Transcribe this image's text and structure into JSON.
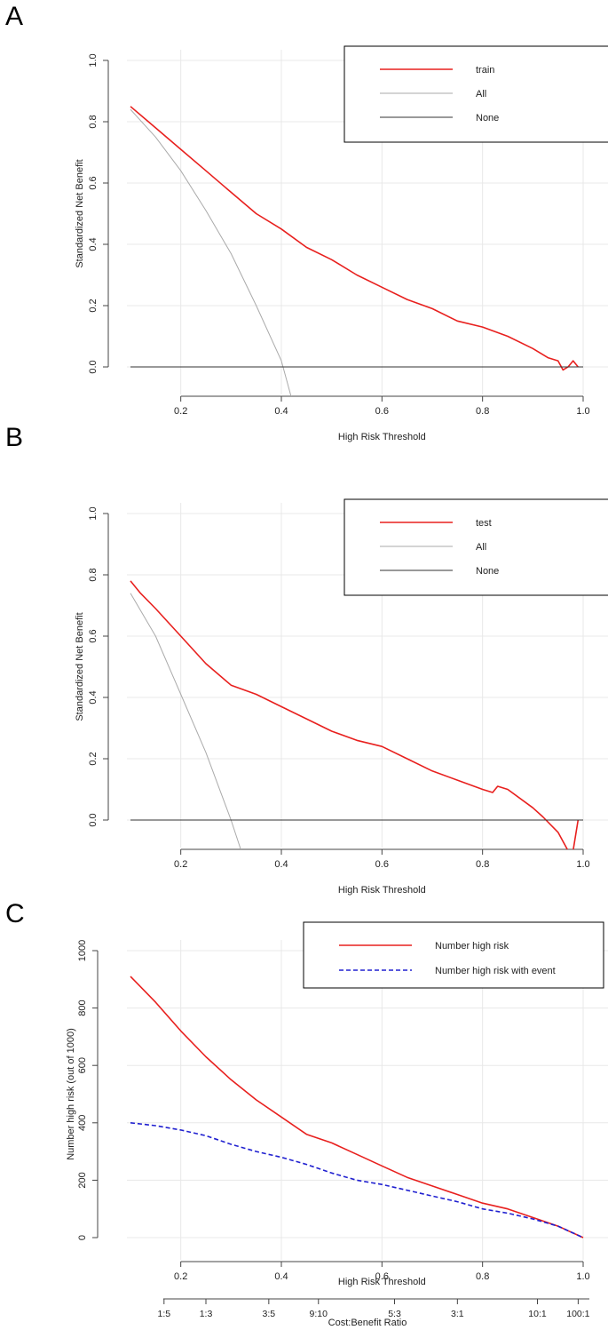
{
  "panels": [
    {
      "letter": "A"
    },
    {
      "letter": "B"
    },
    {
      "letter": "C"
    }
  ],
  "chart_data": [
    {
      "type": "line",
      "title": "",
      "xlabel": "High Risk Threshold",
      "ylabel": "Standardized Net Benefit",
      "xlim": [
        0.1,
        1.0
      ],
      "ylim": [
        -0.1,
        1.0
      ],
      "xticks": [
        "0.2",
        "0.4",
        "0.6",
        "0.8",
        "1.0"
      ],
      "yticks": [
        "0.0",
        "0.2",
        "0.4",
        "0.6",
        "0.8",
        "1.0"
      ],
      "grid": true,
      "legend_position": "top-right",
      "series": [
        {
          "name": "train",
          "color": "#e8201e",
          "x": [
            0.1,
            0.15,
            0.2,
            0.25,
            0.3,
            0.35,
            0.4,
            0.45,
            0.5,
            0.55,
            0.6,
            0.65,
            0.7,
            0.75,
            0.8,
            0.85,
            0.9,
            0.93,
            0.95,
            0.96,
            0.97,
            0.98,
            0.99
          ],
          "y": [
            0.85,
            0.78,
            0.71,
            0.64,
            0.57,
            0.5,
            0.45,
            0.39,
            0.35,
            0.3,
            0.26,
            0.22,
            0.19,
            0.15,
            0.13,
            0.1,
            0.06,
            0.03,
            0.02,
            -0.01,
            0.0,
            0.02,
            0.0
          ]
        },
        {
          "name": "All",
          "color": "#aaaaaa",
          "x": [
            0.1,
            0.15,
            0.2,
            0.25,
            0.3,
            0.35,
            0.4,
            0.42
          ],
          "y": [
            0.84,
            0.75,
            0.64,
            0.51,
            0.37,
            0.2,
            0.02,
            -0.1
          ]
        },
        {
          "name": "None",
          "color": "#333333",
          "x": [
            0.1,
            1.0
          ],
          "y": [
            0.0,
            0.0
          ]
        }
      ]
    },
    {
      "type": "line",
      "title": "",
      "xlabel": "High Risk Threshold",
      "ylabel": "Standardized Net Benefit",
      "xlim": [
        0.1,
        1.0
      ],
      "ylim": [
        -0.1,
        1.0
      ],
      "xticks": [
        "0.2",
        "0.4",
        "0.6",
        "0.8",
        "1.0"
      ],
      "yticks": [
        "0.0",
        "0.2",
        "0.4",
        "0.6",
        "0.8",
        "1.0"
      ],
      "grid": true,
      "legend_position": "top-right",
      "series": [
        {
          "name": "test",
          "color": "#e8201e",
          "x": [
            0.1,
            0.12,
            0.15,
            0.2,
            0.25,
            0.3,
            0.35,
            0.4,
            0.45,
            0.5,
            0.55,
            0.6,
            0.65,
            0.7,
            0.75,
            0.8,
            0.82,
            0.83,
            0.85,
            0.9,
            0.92,
            0.95,
            0.97,
            0.98,
            0.99
          ],
          "y": [
            0.78,
            0.74,
            0.69,
            0.6,
            0.51,
            0.44,
            0.41,
            0.37,
            0.33,
            0.29,
            0.26,
            0.24,
            0.2,
            0.16,
            0.13,
            0.1,
            0.09,
            0.11,
            0.1,
            0.04,
            0.01,
            -0.04,
            -0.1,
            -0.1,
            0.0
          ]
        },
        {
          "name": "All",
          "color": "#aaaaaa",
          "x": [
            0.1,
            0.15,
            0.2,
            0.25,
            0.3,
            0.32
          ],
          "y": [
            0.74,
            0.6,
            0.41,
            0.22,
            0.0,
            -0.1
          ]
        },
        {
          "name": "None",
          "color": "#333333",
          "x": [
            0.1,
            1.0
          ],
          "y": [
            0.0,
            0.0
          ]
        }
      ]
    },
    {
      "type": "line",
      "title": "",
      "xlabel": "High Risk Threshold",
      "ylabel": "Number high risk (out of 1000)",
      "x2label": "Cost:Benefit Ratio",
      "xlim": [
        0.1,
        1.0
      ],
      "ylim": [
        0,
        1000
      ],
      "xticks": [
        "0.2",
        "0.4",
        "0.6",
        "0.8",
        "1.0"
      ],
      "yticks": [
        "0",
        "200",
        "400",
        "600",
        "800",
        "1000"
      ],
      "x2ticks": [
        {
          "label": "1:5",
          "x": 0.1667
        },
        {
          "label": "1:3",
          "x": 0.25
        },
        {
          "label": "3:5",
          "x": 0.375
        },
        {
          "label": "9:10",
          "x": 0.4737
        },
        {
          "label": "5:3",
          "x": 0.625
        },
        {
          "label": "3:1",
          "x": 0.75
        },
        {
          "label": "10:1",
          "x": 0.9091
        },
        {
          "label": "100:1",
          "x": 0.9901
        }
      ],
      "grid": true,
      "legend_position": "top-right",
      "series": [
        {
          "name": "Number high risk",
          "color": "#e8201e",
          "dash": "solid",
          "x": [
            0.1,
            0.15,
            0.2,
            0.25,
            0.3,
            0.35,
            0.4,
            0.45,
            0.5,
            0.55,
            0.6,
            0.65,
            0.7,
            0.75,
            0.8,
            0.85,
            0.9,
            0.95,
            1.0
          ],
          "y": [
            910,
            820,
            720,
            630,
            550,
            480,
            420,
            360,
            330,
            290,
            250,
            210,
            180,
            150,
            120,
            100,
            70,
            40,
            0
          ]
        },
        {
          "name": "Number high risk with event",
          "color": "#2020d0",
          "dash": "dashed",
          "x": [
            0.1,
            0.15,
            0.2,
            0.25,
            0.3,
            0.35,
            0.4,
            0.45,
            0.5,
            0.55,
            0.6,
            0.65,
            0.7,
            0.75,
            0.8,
            0.85,
            0.9,
            0.95,
            1.0
          ],
          "y": [
            400,
            390,
            375,
            355,
            325,
            300,
            280,
            255,
            225,
            200,
            185,
            165,
            145,
            125,
            100,
            85,
            65,
            40,
            0
          ]
        }
      ]
    }
  ]
}
